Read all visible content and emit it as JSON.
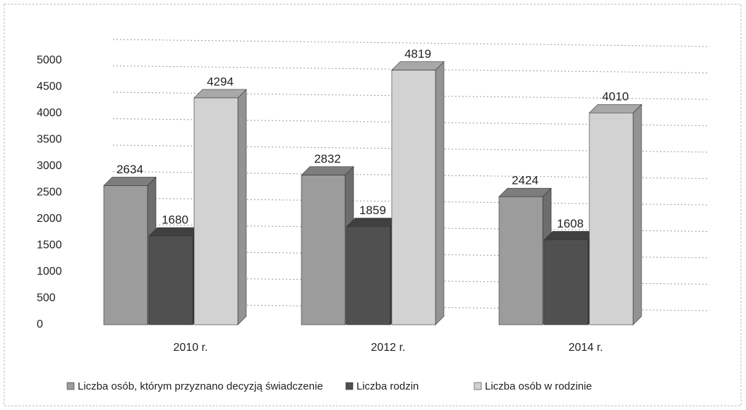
{
  "chart_data": {
    "type": "bar3d",
    "categories": [
      "2010 r.",
      "2012 r.",
      "2014 r."
    ],
    "series": [
      {
        "name": "Liczba osób, którym przyznano decyzją świadczenie",
        "color": "#9c9c9c",
        "values": [
          2634,
          2832,
          2424
        ]
      },
      {
        "name": "Liczba rodzin",
        "color": "#505050",
        "values": [
          1680,
          1859,
          1608
        ]
      },
      {
        "name": "Liczba osób w rodzinie",
        "color": "#d2d2d2",
        "values": [
          4294,
          4819,
          4010
        ]
      }
    ],
    "ylim": [
      0,
      5000
    ],
    "yticks": [
      0,
      500,
      1000,
      1500,
      2000,
      2500,
      3000,
      3500,
      4000,
      4500,
      5000
    ],
    "grid": true,
    "legend": "bottom"
  }
}
